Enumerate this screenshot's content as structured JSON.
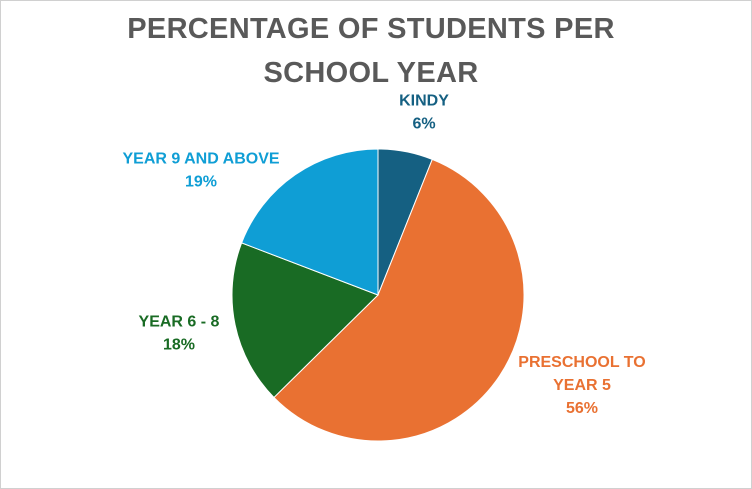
{
  "chart_data": {
    "type": "pie",
    "title": "PERCENTAGE OF STUDENTS PER SCHOOL YEAR",
    "slices": [
      {
        "label": "KINDY",
        "value": 6,
        "value_label": "6%",
        "color": "#156082"
      },
      {
        "label": "PRESCHOOL TO YEAR 5",
        "label_lines": [
          "PRESCHOOL TO",
          "YEAR 5"
        ],
        "value": 56,
        "value_label": "56%",
        "color": "#E97132"
      },
      {
        "label": "YEAR 6 - 8",
        "value": 18,
        "value_label": "18%",
        "color": "#196B24"
      },
      {
        "label": "YEAR 9 AND ABOVE",
        "value": 19,
        "value_label": "19%",
        "color": "#0F9ED5"
      }
    ],
    "start_angle_deg": 0,
    "direction": "clockwise",
    "legend": "none"
  }
}
